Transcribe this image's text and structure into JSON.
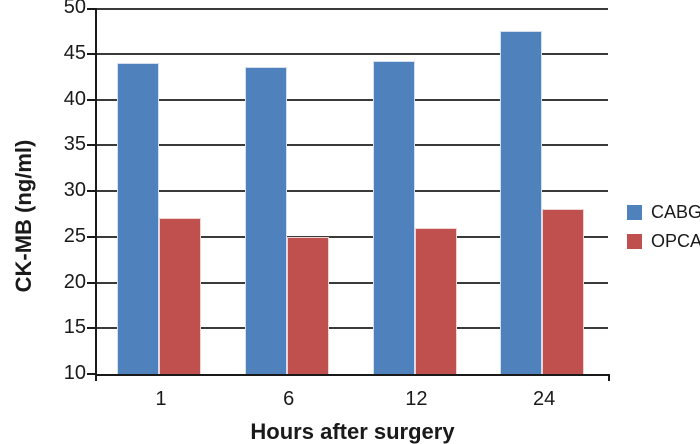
{
  "chart_data": {
    "type": "bar",
    "categories": [
      "1",
      "6",
      "12",
      "24"
    ],
    "series": [
      {
        "name": "CABG",
        "color": "#4F81BD",
        "values": [
          44,
          43.5,
          44.2,
          47.5
        ]
      },
      {
        "name": "OPCAB",
        "color": "#C0504D",
        "values": [
          27,
          25,
          26,
          28
        ]
      }
    ],
    "xlabel": "Hours after surgery",
    "ylabel": "CK-MB (ng/ml)",
    "ylim": [
      10,
      50
    ],
    "yticks": [
      50,
      45,
      40,
      35,
      30,
      25,
      20,
      15,
      10
    ],
    "grid": true,
    "gridline_color": "#3a3a3a",
    "axis_color": "#1a1a1a",
    "legend_position": "right"
  }
}
